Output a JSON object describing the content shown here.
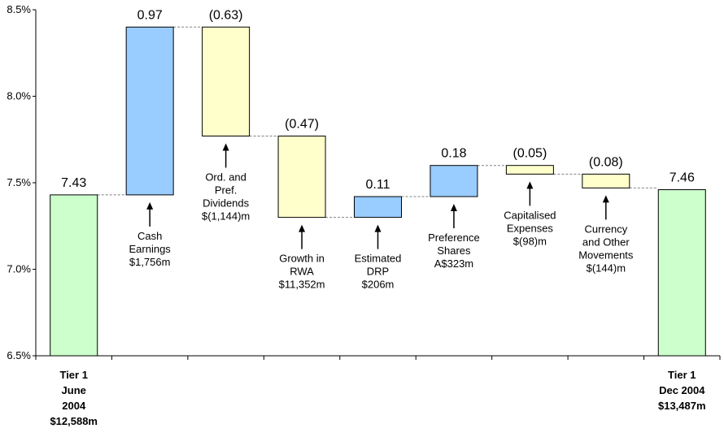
{
  "chart_data": {
    "type": "bar",
    "subtype": "waterfall",
    "title": "",
    "xlabel": "",
    "ylabel": "",
    "ylim": [
      6.5,
      8.5
    ],
    "y_ticks": [
      "6.5%",
      "7.0%",
      "7.5%",
      "8.0%",
      "8.5%"
    ],
    "y_tick_values": [
      6.5,
      7.0,
      7.5,
      8.0,
      8.5
    ],
    "grid": false,
    "legend": "none",
    "colors": {
      "total": "#ccffcc",
      "increase": "#99ccff",
      "decrease": "#ffffcc",
      "outline": "#000000",
      "connector": "#808080"
    },
    "bars": [
      {
        "kind": "total",
        "start": 6.5,
        "end": 7.43,
        "label": "7.43",
        "annotation": [],
        "category": [
          "Tier 1",
          "June",
          "2004",
          "$12,588m"
        ]
      },
      {
        "kind": "increase",
        "start": 7.43,
        "end": 8.4,
        "label": "0.97",
        "annotation": [
          "Cash",
          "Earnings",
          "$1,756m"
        ],
        "category": []
      },
      {
        "kind": "decrease",
        "start": 8.4,
        "end": 7.77,
        "label": "(0.63)",
        "annotation": [
          "Ord. and",
          "Pref.",
          "Dividends",
          "$(1,144)m"
        ],
        "category": []
      },
      {
        "kind": "decrease",
        "start": 7.77,
        "end": 7.3,
        "label": "(0.47)",
        "annotation": [
          "Growth in",
          "RWA",
          "$11,352m"
        ],
        "category": []
      },
      {
        "kind": "increase",
        "start": 7.3,
        "end": 7.42,
        "label": "0.11",
        "annotation": [
          "Estimated",
          "DRP",
          "$206m"
        ],
        "category": []
      },
      {
        "kind": "increase",
        "start": 7.42,
        "end": 7.6,
        "label": "0.18",
        "annotation": [
          "Preference",
          "Shares",
          "A$323m"
        ],
        "category": []
      },
      {
        "kind": "decrease",
        "start": 7.6,
        "end": 7.55,
        "label": "(0.05)",
        "annotation": [
          "Capitalised",
          "Expenses",
          "$(98)m"
        ],
        "category": []
      },
      {
        "kind": "decrease",
        "start": 7.55,
        "end": 7.47,
        "label": "(0.08)",
        "annotation": [
          "Currency",
          "and Other",
          "Movements",
          "$(144)m"
        ],
        "category": []
      },
      {
        "kind": "total",
        "start": 6.5,
        "end": 7.46,
        "label": "7.46",
        "annotation": [],
        "category": [
          "Tier 1",
          "Dec 2004",
          "$13,487m"
        ]
      }
    ]
  }
}
